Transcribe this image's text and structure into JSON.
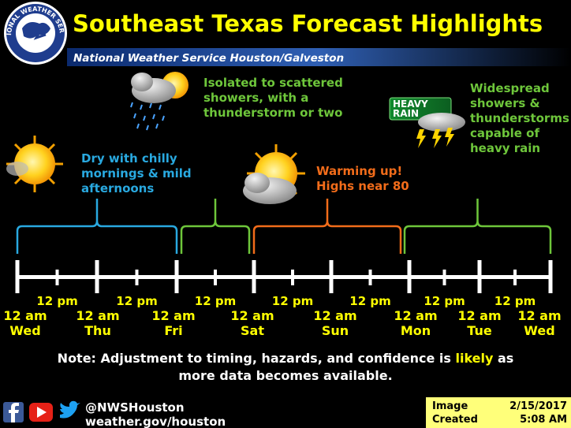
{
  "header": {
    "title": "Southeast Texas Forecast Highlights",
    "subtitle": "National Weather Service Houston/Galveston",
    "logo_text": "NATIONAL WEATHER SERVICE"
  },
  "periods": [
    {
      "lines": [
        "Dry with chilly",
        "mornings & mild",
        "afternoons"
      ]
    },
    {
      "lines": [
        "Isolated to scattered",
        "showers, with a",
        "thunderstorm or two"
      ]
    },
    {
      "lines": [
        "Warming up!",
        "Highs near 80"
      ]
    },
    {
      "lines": [
        "Widespread",
        "showers &",
        "thunderstorms",
        "capable of",
        "heavy rain"
      ],
      "badge": [
        "HEAVY",
        "RAIN"
      ]
    }
  ],
  "timeline": {
    "noon_labels": [
      "12 pm",
      "12 pm",
      "12 pm",
      "12 pm",
      "12 pm",
      "12 pm",
      "12 pm"
    ],
    "midnights": [
      {
        "time": "12 am",
        "day": "Wed"
      },
      {
        "time": "12 am",
        "day": "Thu"
      },
      {
        "time": "12 am",
        "day": "Fri"
      },
      {
        "time": "12 am",
        "day": "Sat"
      },
      {
        "time": "12 am",
        "day": "Sun"
      },
      {
        "time": "12 am",
        "day": "Mon"
      },
      {
        "time": "12 am",
        "day": "Tue"
      },
      {
        "time": "12 am",
        "day": "Wed"
      }
    ]
  },
  "note": {
    "line1_before": "Note: Adjustment to timing, hazards, and confidence is ",
    "line1_highlight": "likely",
    "line1_after": " as",
    "line2": "more data becomes available."
  },
  "footer": {
    "handle": "@NWSHouston",
    "website": "weather.gov/houston",
    "image_label": [
      "Image",
      "Created"
    ],
    "date": "2/15/2017",
    "time": "5:08 AM"
  }
}
